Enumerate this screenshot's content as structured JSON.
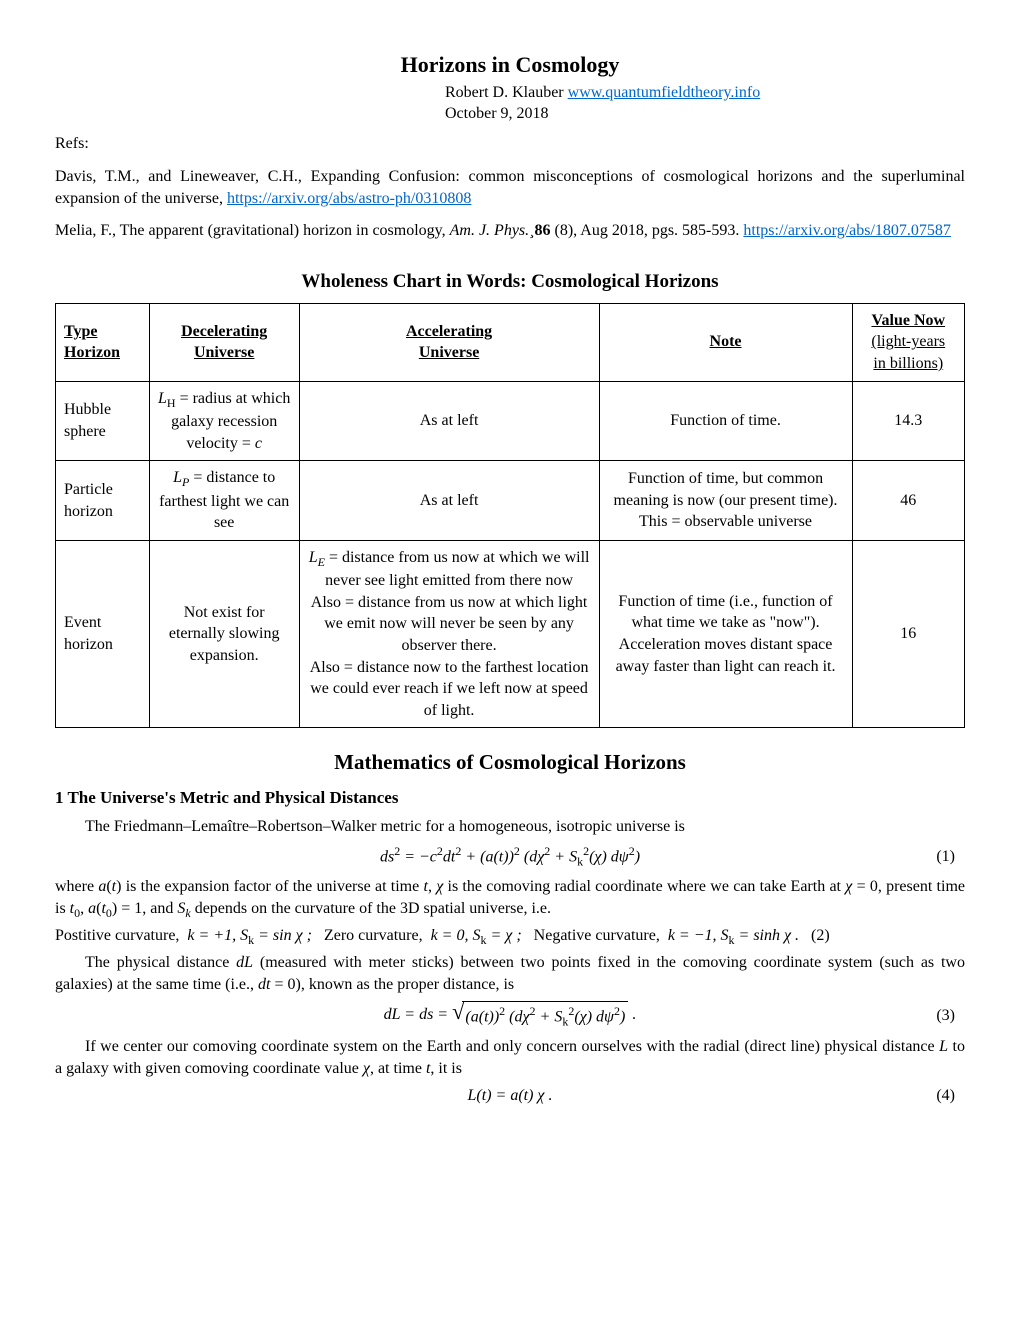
{
  "title": "Horizons in Cosmology",
  "author": "Robert D. Klauber",
  "author_link_text": "www.quantumfieldtheory.info",
  "date": "October 9, 2018",
  "refs_label": "Refs:",
  "ref1_pre": "Davis, T.M., and Lineweaver, C.H., Expanding Confusion: common misconceptions of cosmological horizons and the superluminal expansion of the universe, ",
  "ref1_link": "https://arxiv.org/abs/astro-ph/0310808",
  "ref2_pre": "Melia, F., The apparent (gravitational) horizon in cosmology, ",
  "ref2_journal": "Am. J. Phys.¸",
  "ref2_vol": "86",
  "ref2_rest": " (8), Aug 2018, pgs. 585-593. ",
  "ref2_link": "https://arxiv.org/abs/1807.07587",
  "chart_heading": "Wholeness Chart in Words: Cosmological Horizons",
  "table": {
    "headers": {
      "type_l1": "Type",
      "type_l2": "Horizon",
      "decel_l1": "Decelerating",
      "decel_l2": "Universe",
      "accel_l1": "Accelerating",
      "accel_l2": "Universe",
      "note": "Note",
      "value_l1": "Value Now",
      "value_l2": "(light-years",
      "value_l3": "in billions)"
    },
    "rows": [
      {
        "type": "Hubble sphere",
        "decel_pre": "L",
        "decel_sub": "H",
        "decel_rest": " = radius at which galaxy recession velocity = ",
        "decel_c": "c",
        "accel": "As at left",
        "note": "Function of time.",
        "value": "14.3"
      },
      {
        "type": "Particle horizon",
        "decel_pre": "L",
        "decel_sub": "P",
        "decel_rest": " = distance to farthest light we can see",
        "accel": "As at left",
        "note_l1": "Function of time, but common meaning is now (our present time).",
        "note_l2": "This = observable universe",
        "value": "46"
      },
      {
        "type": "Event horizon",
        "decel": "Not exist for eternally slowing expansion.",
        "accel_pre": "L",
        "accel_sub": "E",
        "accel_l1": " = distance from us now at which we will never see light emitted from there now",
        "accel_l2": "Also = distance from us now at which light we emit now will never be seen by any observer there.",
        "accel_l3": "Also = distance now to the farthest location we could ever reach if we left now at speed of light.",
        "note": "Function of time (i.e., function of what time we take as \"now\"). Acceleration moves distant space away faster than light can reach it.",
        "value": "16"
      }
    ]
  },
  "math_heading": "Mathematics of Cosmological Horizons",
  "sec1_title": "1   The Universe's Metric and Physical Distances",
  "p1": "The Friedmann–Lemaître–Robertson–Walker metric for a homogeneous, isotropic universe is",
  "eq1_num": "(1)",
  "p2_pre": "where ",
  "p2_a": "a",
  "p2_t": "t",
  "p2_mid1": ") is the expansion factor of the universe at time ",
  "p2_mid2": ", ",
  "p2_chi": "χ",
  "p2_mid3": " is the comoving radial coordinate where we can take Earth at ",
  "p2_mid4": " = 0, present time is ",
  "p2_t0": "t",
  "p2_sub0": "0",
  "p2_mid5": ", ",
  "p2_at0": "a",
  "p2_mid6": ") = 1, and ",
  "p2_Sk": "S",
  "p2_k": "k",
  "p2_mid7": " depends on the curvature of the 3D spatial universe, i.e.",
  "curv_pos": "Postitive curvature,",
  "curv_pos_k": "k = +1,  S",
  "curv_pos_rest": " = sin χ ;",
  "curv_zero": "Zero curvature,",
  "curv_zero_k": "k = 0,  S",
  "curv_zero_rest": " = χ ;",
  "curv_neg": "Negative curvature,",
  "curv_neg_k": "k = −1,  S",
  "curv_neg_rest": " = sinh χ .",
  "eq2_num": "(2)",
  "p3_pre": "The physical distance ",
  "p3_dL": "dL",
  "p3_mid1": " (measured with meter sticks) between two points fixed in the comoving coordinate system (such as two galaxies) at the same time (i.e., ",
  "p3_dt": "dt",
  "p3_mid2": " = 0), known as the proper distance, is",
  "eq3_num": "(3)",
  "p4_pre": "If we center our comoving coordinate system on the Earth and only concern ourselves with the radial (direct line) physical distance ",
  "p4_L": "L",
  "p4_mid1": " to a galaxy with given comoving coordinate value ",
  "p4_mid2": ", at time ",
  "p4_mid3": ", it is",
  "eq4_num": "(4)"
}
